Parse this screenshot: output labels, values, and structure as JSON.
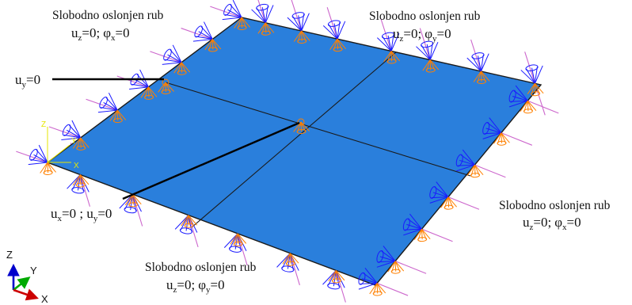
{
  "edge_labels": {
    "top_left": {
      "title": "Slobodno oslonjen rub",
      "condition": {
        "u_sub": "z",
        "u_value": "=0;",
        "phi": "φ",
        "phi_sub": "x",
        "phi_value": "=0"
      }
    },
    "top_right": {
      "title": "Slobodno oslonjen rub",
      "condition": {
        "u_sub": "z",
        "u_value": "=0;",
        "phi": "φ",
        "phi_sub": "y",
        "phi_value": "=0"
      }
    },
    "right": {
      "title": "Slobodno oslonjen rub",
      "condition": {
        "u_sub": "z",
        "u_value": "=0;",
        "phi": "φ",
        "phi_sub": "x",
        "phi_value": "=0"
      }
    },
    "bottom": {
      "title": "Slobodno oslonjen rub",
      "condition": {
        "u_sub": "z",
        "u_value": "=0;",
        "phi": "φ",
        "phi_sub": "y",
        "phi_value": "=0"
      }
    }
  },
  "callouts": {
    "uy": {
      "u": "u",
      "sub": "y",
      "value": "=0"
    },
    "ux_uy": {
      "u1": "u",
      "sub1": "x",
      "value1": "=0 ; ",
      "u2": "u",
      "sub2": "y",
      "value2": "=0"
    }
  },
  "triad": {
    "z": "Z",
    "y": "Y",
    "x": "X"
  },
  "local_triad": {
    "z": "Z",
    "y": "Y",
    "x": "X"
  },
  "colors": {
    "plate_fill": "#2a7fdc",
    "plate_edge": "#1a1a1a",
    "partition_line": "#1a1a1a",
    "bc_blue": "#1a1aff",
    "bc_orange": "#ff8000",
    "bc_magenta": "#cc66cc",
    "triad_x": "#cc0000",
    "triad_y": "#00aa00",
    "triad_z": "#0000cc"
  }
}
